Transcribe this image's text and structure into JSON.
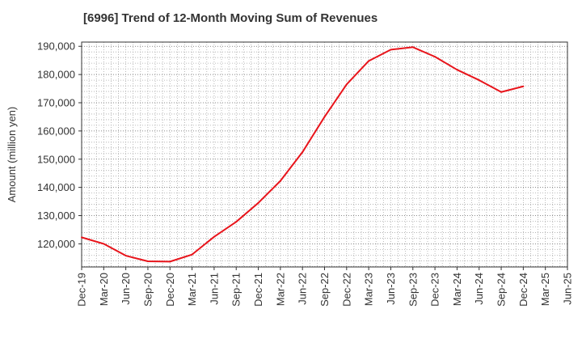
{
  "chart_data": {
    "type": "line",
    "title": "[6996]  Trend of 12-Month Moving Sum of Revenues",
    "xlabel": "",
    "ylabel": "Amount (million yen)",
    "x": [
      "Dec-19",
      "Mar-20",
      "Jun-20",
      "Sep-20",
      "Dec-20",
      "Mar-21",
      "Jun-21",
      "Sep-21",
      "Dec-21",
      "Mar-22",
      "Jun-22",
      "Sep-22",
      "Dec-22",
      "Mar-23",
      "Jun-23",
      "Sep-23",
      "Dec-23",
      "Mar-24",
      "Jun-24",
      "Sep-24",
      "Dec-24"
    ],
    "x_ticks": [
      "Dec-19",
      "Mar-20",
      "Jun-20",
      "Sep-20",
      "Dec-20",
      "Mar-21",
      "Jun-21",
      "Sep-21",
      "Dec-21",
      "Mar-22",
      "Jun-22",
      "Sep-22",
      "Dec-22",
      "Mar-23",
      "Jun-23",
      "Sep-23",
      "Dec-23",
      "Mar-24",
      "Jun-24",
      "Sep-24",
      "Dec-24",
      "Mar-25",
      "Jun-25"
    ],
    "series": [
      {
        "name": "",
        "color": "#e8141b",
        "values": [
          122300,
          120000,
          115800,
          113800,
          113700,
          116200,
          122500,
          127800,
          134500,
          142300,
          152500,
          165000,
          176500,
          184800,
          188800,
          189700,
          186300,
          181700,
          178000,
          173800,
          175800
        ]
      }
    ],
    "y_ticks": [
      120000,
      130000,
      140000,
      150000,
      160000,
      170000,
      180000,
      190000
    ],
    "y_tick_labels": [
      "120,000",
      "130,000",
      "140,000",
      "150,000",
      "160,000",
      "170,000",
      "180,000",
      "190,000"
    ],
    "ylim": [
      111800,
      191500
    ],
    "grid": true,
    "legend": "none"
  }
}
